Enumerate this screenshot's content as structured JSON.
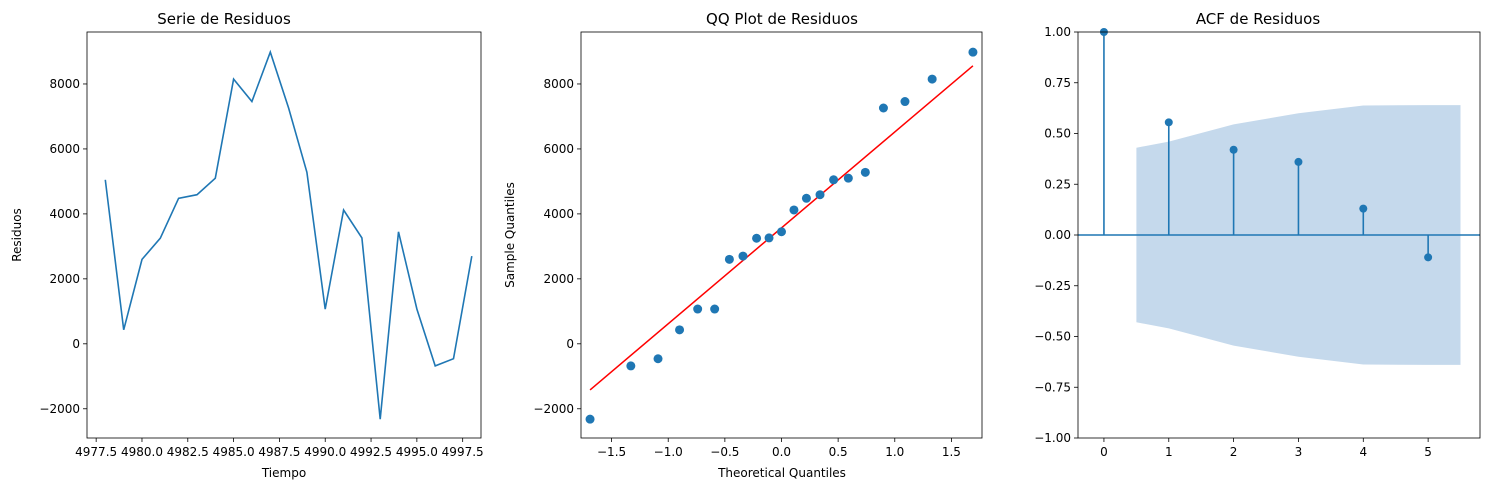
{
  "chart_data": [
    {
      "type": "line",
      "title": "Serie de Residuos",
      "xlabel": "Tiempo",
      "ylabel": "Residuos",
      "xlim": [
        4977.0,
        4998.5
      ],
      "ylim": [
        -2900,
        9600
      ],
      "xticks": [
        4977.5,
        4980.0,
        4982.5,
        4985.0,
        4987.5,
        4990.0,
        4992.5,
        4995.0,
        4997.5
      ],
      "xtick_labels": [
        "4977.5",
        "4980.0",
        "4982.5",
        "4985.0",
        "4987.5",
        "4990.0",
        "4992.5",
        "4995.0",
        "4997.5"
      ],
      "yticks": [
        -2000,
        0,
        2000,
        4000,
        6000,
        8000
      ],
      "ytick_labels": [
        "−2000",
        "0",
        "2000",
        "4000",
        "6000",
        "8000"
      ],
      "x": [
        4978,
        4979,
        4980,
        4981,
        4982,
        4983,
        4984,
        4985,
        4986,
        4987,
        4988,
        4989,
        4990,
        4991,
        4992,
        4993,
        4994,
        4995,
        4996,
        4997,
        4998
      ],
      "y": [
        5050,
        430,
        2600,
        3250,
        4480,
        4590,
        5100,
        8150,
        7460,
        8980,
        7260,
        5280,
        1070,
        4120,
        3260,
        -2320,
        3450,
        1070,
        -680,
        -460,
        2700
      ],
      "color": "#1f77b4"
    },
    {
      "type": "scatter",
      "title": "QQ Plot de Residuos",
      "xlabel": "Theoretical Quantiles",
      "ylabel": "Sample Quantiles",
      "xlim": [
        -1.77,
        1.77
      ],
      "ylim": [
        -2900,
        9600
      ],
      "xticks": [
        -1.5,
        -1.0,
        -0.5,
        0.0,
        0.5,
        1.0,
        1.5
      ],
      "xtick_labels": [
        "−1.5",
        "−1.0",
        "−0.5",
        "0.0",
        "0.5",
        "1.0",
        "1.5"
      ],
      "yticks": [
        -2000,
        0,
        2000,
        4000,
        6000,
        8000
      ],
      "ytick_labels": [
        "−2000",
        "0",
        "2000",
        "4000",
        "6000",
        "8000"
      ],
      "x": [
        -1.69,
        -1.33,
        -1.09,
        -0.9,
        -0.74,
        -0.59,
        -0.46,
        -0.34,
        -0.22,
        -0.11,
        0.0,
        0.11,
        0.22,
        0.34,
        0.46,
        0.59,
        0.74,
        0.9,
        1.09,
        1.33,
        1.69
      ],
      "y": [
        -2320,
        -680,
        -460,
        430,
        1070,
        1070,
        2600,
        2700,
        3250,
        3260,
        3450,
        4120,
        4480,
        4590,
        5050,
        5100,
        5280,
        7260,
        7460,
        8150,
        8980
      ],
      "fit_line": {
        "x": [
          -1.69,
          1.69
        ],
        "y": [
          -1420,
          8560
        ]
      },
      "point_color": "#1f77b4",
      "line_color": "#ff0000"
    },
    {
      "type": "stem",
      "title": "ACF de Residuos",
      "xlim": [
        -0.4,
        5.8
      ],
      "ylim": [
        -1.0,
        1.0
      ],
      "xticks": [
        0,
        1,
        2,
        3,
        4,
        5
      ],
      "xtick_labels": [
        "0",
        "1",
        "2",
        "3",
        "4",
        "5"
      ],
      "yticks": [
        -1.0,
        -0.75,
        -0.5,
        -0.25,
        0.0,
        0.25,
        0.5,
        0.75,
        1.0
      ],
      "ytick_labels": [
        "−1.00",
        "−0.75",
        "−0.50",
        "−0.25",
        "0.00",
        "0.25",
        "0.50",
        "0.75",
        "1.00"
      ],
      "lags": [
        0,
        1,
        2,
        3,
        4,
        5
      ],
      "values": [
        1.0,
        0.555,
        0.42,
        0.36,
        0.13,
        -0.11
      ],
      "confint_x": [
        0.5,
        1,
        2,
        3,
        4,
        5,
        5.5
      ],
      "confint_upper": [
        0.43,
        0.46,
        0.545,
        0.6,
        0.638,
        0.64,
        0.64
      ],
      "confint_lower": [
        -0.43,
        -0.46,
        -0.545,
        -0.6,
        -0.638,
        -0.64,
        -0.64
      ],
      "color": "#1f77b4",
      "band_color": "#c5d9ec"
    }
  ]
}
